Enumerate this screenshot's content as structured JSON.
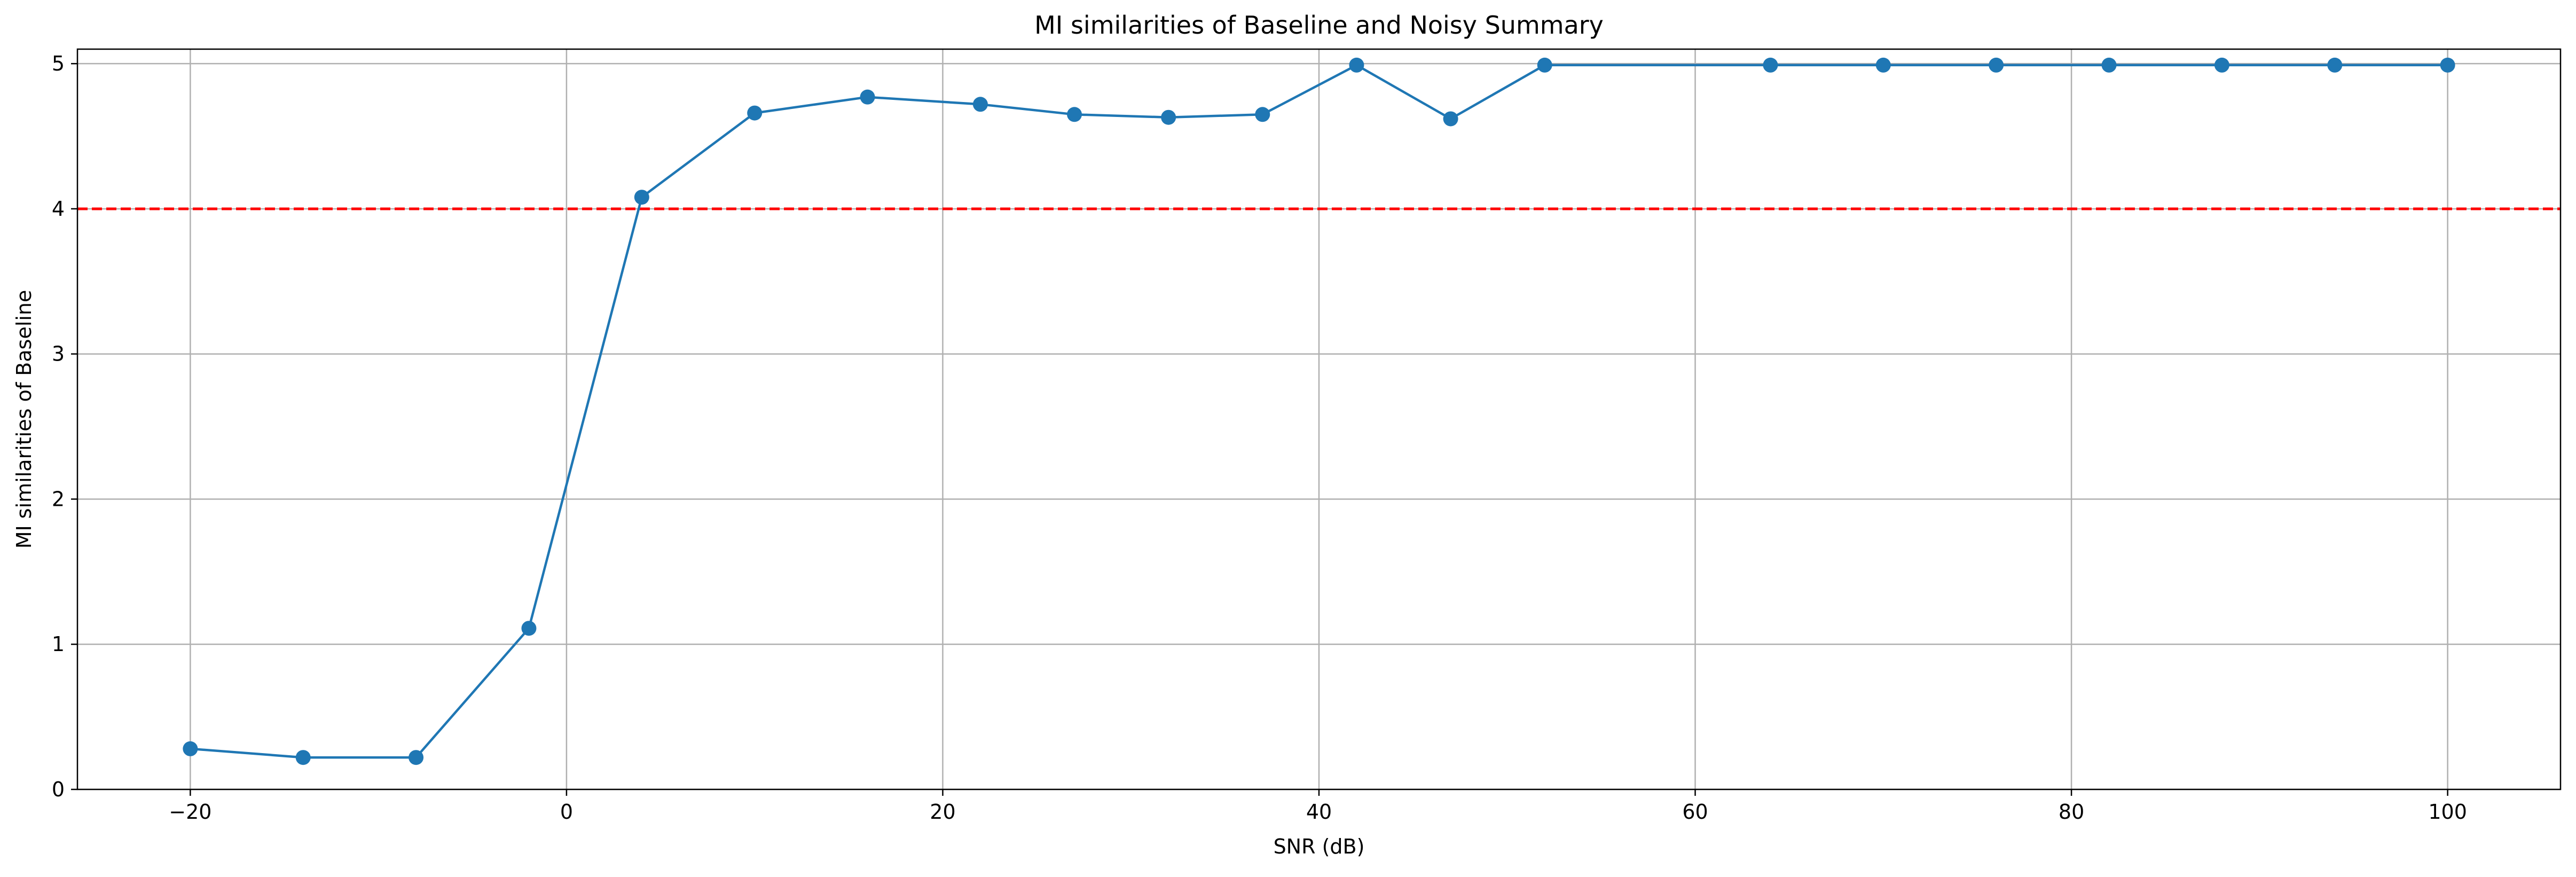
{
  "chart_data": {
    "type": "line",
    "title": "MI similarities of Baseline and Noisy Summary",
    "xlabel": "SNR (dB)",
    "ylabel": "MI similarities of Baseline",
    "xlim": [
      -26,
      106
    ],
    "ylim": [
      0,
      5.1
    ],
    "x_ticks": [
      -20,
      0,
      20,
      40,
      60,
      80,
      100
    ],
    "x_tick_labels": [
      "−20",
      "0",
      "20",
      "40",
      "60",
      "80",
      "100"
    ],
    "y_ticks": [
      0,
      1,
      2,
      3,
      4,
      5
    ],
    "y_tick_labels": [
      "0",
      "1",
      "2",
      "3",
      "4",
      "5"
    ],
    "grid": true,
    "series": [
      {
        "x": [
          -20,
          -14,
          -8,
          -2,
          4,
          10,
          16,
          22,
          27,
          32,
          37,
          42,
          47,
          52,
          64,
          70,
          76,
          82,
          88,
          94,
          100
        ],
        "values": [
          0.28,
          0.22,
          0.22,
          1.11,
          4.08,
          4.66,
          4.77,
          4.72,
          4.65,
          4.63,
          4.65,
          4.99,
          4.62,
          4.99,
          4.99,
          4.99,
          4.99,
          4.99,
          4.99,
          4.99,
          4.99
        ],
        "color": "#1f77b4",
        "marker": "circle"
      }
    ],
    "reference_lines": [
      {
        "axis": "y",
        "value": 4,
        "color": "#ff0000",
        "style": "dashed"
      }
    ]
  }
}
